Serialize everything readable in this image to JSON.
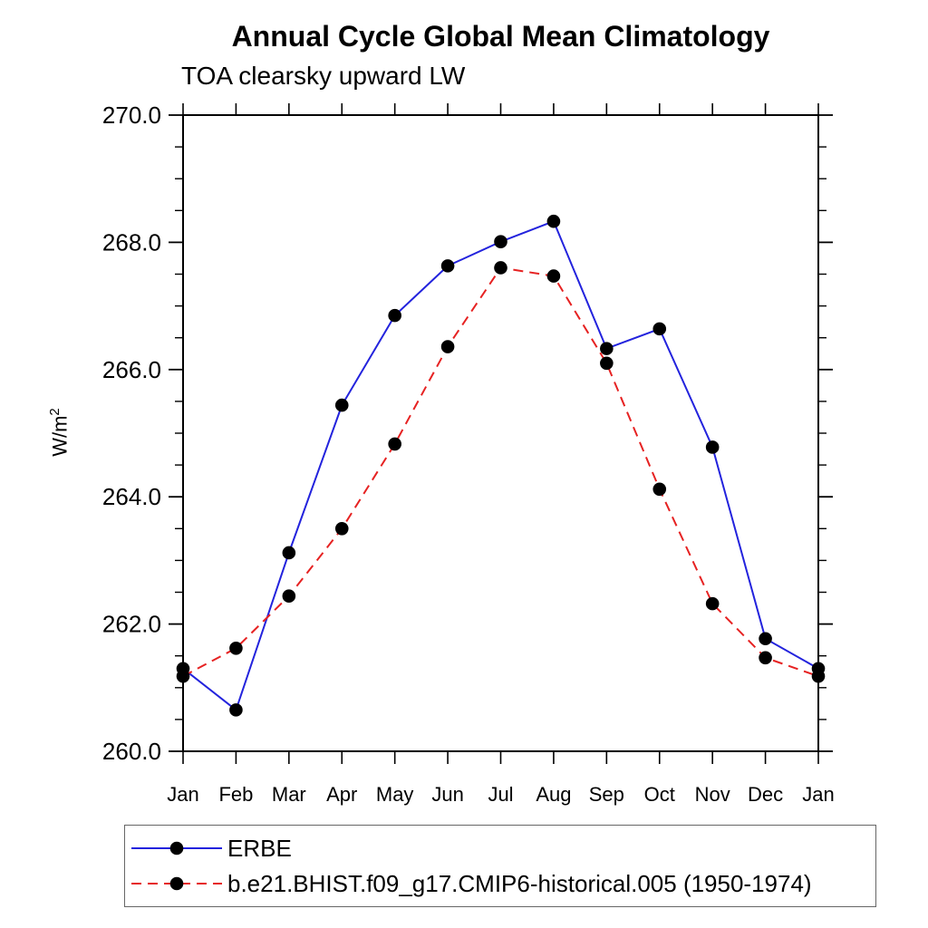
{
  "page": {
    "background_color": "#ffffff"
  },
  "chart_data": {
    "type": "line",
    "title": "Annual Cycle Global Mean Climatology",
    "subtitle": "TOA clearsky upward LW",
    "ylabel": "W/m²",
    "ylabel_base": "W/m",
    "ylabel_sup": "2",
    "xlabel": "",
    "categories": [
      "Jan",
      "Feb",
      "Mar",
      "Apr",
      "May",
      "Jun",
      "Jul",
      "Aug",
      "Sep",
      "Oct",
      "Nov",
      "Dec",
      "Jan"
    ],
    "series": [
      {
        "name": "ERBE",
        "color": "#2323dd",
        "line_style": "solid",
        "marker": "black-dot",
        "values": [
          261.3,
          260.65,
          263.12,
          265.44,
          266.85,
          267.63,
          268.01,
          268.33,
          266.33,
          266.64,
          264.78,
          261.77,
          261.3
        ]
      },
      {
        "name": "b.e21.BHIST.f09_g17.CMIP6-historical.005 (1950-1974)",
        "color": "#e62222",
        "line_style": "dashed",
        "marker": "black-dot",
        "values": [
          261.18,
          261.62,
          262.44,
          263.5,
          264.83,
          266.36,
          267.6,
          267.47,
          266.1,
          264.12,
          262.32,
          261.47,
          261.18
        ]
      }
    ],
    "ylim": [
      260.0,
      270.0
    ],
    "ytick_major_interval": 2.0,
    "ytick_minor_interval": 0.5,
    "ytick_labels": [
      "260.0",
      "262.0",
      "264.0",
      "266.0",
      "268.0",
      "270.0"
    ],
    "grid": false,
    "marker_color": "#000000",
    "axis_color": "#000000",
    "legend_position": "bottom-left-box"
  }
}
